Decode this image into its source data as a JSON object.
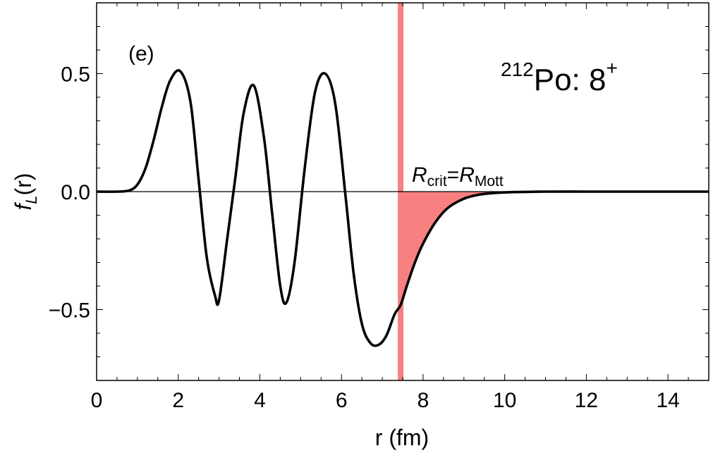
{
  "chart_data": {
    "type": "line",
    "panel_label": "(e)",
    "title": {
      "mass_number": "212",
      "element": "Po: 8",
      "parity": "+"
    },
    "xlabel": "r (fm)",
    "ylabel": {
      "main": "f",
      "sub": "L",
      "tail": "(r)"
    },
    "xlim": [
      0,
      15
    ],
    "ylim": [
      -0.8,
      0.8
    ],
    "xticks": [
      0,
      2,
      4,
      6,
      8,
      10,
      12,
      14
    ],
    "yticks": [
      -0.5,
      0.0,
      0.5
    ],
    "ytick_labels": [
      "−0.5",
      "0.0",
      "0.5"
    ],
    "grid": false,
    "colors": {
      "curve": "#000000",
      "highlight": "#f98080",
      "shade": "#f98080"
    },
    "marker": {
      "r": 7.45,
      "label": {
        "r1": "R",
        "s1": "crit",
        "eq": "=",
        "r2": "R",
        "s2": "Mott"
      }
    },
    "series": [
      {
        "x": [
          0,
          0.5,
          0.8,
          1.0,
          1.2,
          1.4,
          1.6,
          1.8,
          2.05,
          2.3,
          2.5,
          2.7,
          2.9,
          3.0,
          3.2,
          3.4,
          3.6,
          3.85,
          4.1,
          4.3,
          4.5,
          4.65,
          4.85,
          5.1,
          5.35,
          5.6,
          5.85,
          6.1,
          6.3,
          6.5,
          6.7,
          6.9,
          7.1,
          7.3,
          7.45,
          7.6,
          7.8,
          8.0,
          8.3,
          8.6,
          9.0,
          9.4,
          9.8,
          10.2,
          10.6,
          11.0,
          12.0,
          13.0,
          15.0
        ],
        "y": [
          0,
          0.0,
          0.005,
          0.03,
          0.1,
          0.22,
          0.36,
          0.47,
          0.51,
          0.38,
          0.05,
          -0.28,
          -0.44,
          -0.46,
          -0.2,
          0.06,
          0.33,
          0.45,
          0.23,
          -0.09,
          -0.4,
          -0.47,
          -0.3,
          0.1,
          0.42,
          0.5,
          0.37,
          -0.02,
          -0.35,
          -0.56,
          -0.64,
          -0.65,
          -0.61,
          -0.52,
          -0.48,
          -0.4,
          -0.3,
          -0.22,
          -0.13,
          -0.07,
          -0.03,
          -0.012,
          -0.005,
          -0.002,
          -0.001,
          0,
          0,
          0,
          0
        ]
      }
    ]
  }
}
